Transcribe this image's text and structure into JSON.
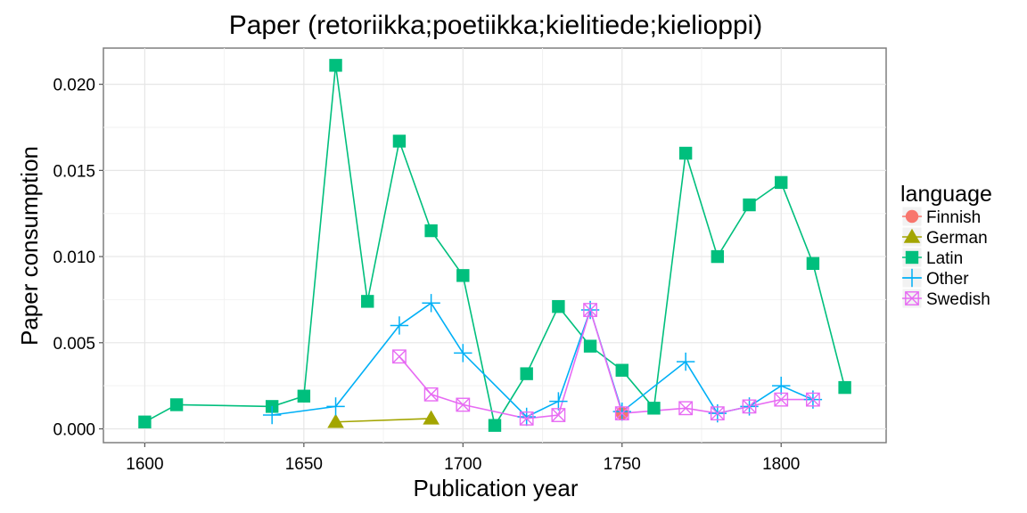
{
  "chart_data": {
    "type": "line",
    "title": "Paper (retoriikka;poetiikka;kielitiede;kielioppi)",
    "xlabel": "Publication year",
    "ylabel": "Paper consumption",
    "xlim": [
      1587,
      1833
    ],
    "ylim": [
      -0.0008,
      0.0221
    ],
    "xticks": [
      1600,
      1650,
      1700,
      1750,
      1800
    ],
    "yticks": [
      0.0,
      0.005,
      0.01,
      0.015,
      0.02
    ],
    "ytick_labels": [
      "0.000",
      "0.005",
      "0.010",
      "0.015",
      "0.020"
    ],
    "grid": true,
    "legend": {
      "title": "language",
      "position": "right"
    },
    "series": [
      {
        "name": "Finnish",
        "color": "#F8766D",
        "marker": "circle",
        "points": [
          [
            1750,
            0.0009
          ]
        ]
      },
      {
        "name": "German",
        "color": "#A3A500",
        "marker": "triangle",
        "points": [
          [
            1660,
            0.0004
          ],
          [
            1690,
            0.0006
          ]
        ]
      },
      {
        "name": "Latin",
        "color": "#00BF7D",
        "marker": "square",
        "points": [
          [
            1600,
            0.0004
          ],
          [
            1610,
            0.0014
          ],
          [
            1640,
            0.0013
          ],
          [
            1650,
            0.0019
          ],
          [
            1660,
            0.0211
          ],
          [
            1670,
            0.0074
          ],
          [
            1680,
            0.0167
          ],
          [
            1690,
            0.0115
          ],
          [
            1700,
            0.0089
          ],
          [
            1710,
            0.0002
          ],
          [
            1720,
            0.0032
          ],
          [
            1730,
            0.0071
          ],
          [
            1740,
            0.0048
          ],
          [
            1750,
            0.0034
          ],
          [
            1760,
            0.0012
          ],
          [
            1770,
            0.016
          ],
          [
            1780,
            0.01
          ],
          [
            1790,
            0.013
          ],
          [
            1800,
            0.0143
          ],
          [
            1810,
            0.0096
          ],
          [
            1820,
            0.0024
          ]
        ]
      },
      {
        "name": "Other",
        "color": "#00B0F6",
        "marker": "plus",
        "points": [
          [
            1640,
            0.0008
          ],
          [
            1660,
            0.0013
          ],
          [
            1680,
            0.006
          ],
          [
            1690,
            0.0073
          ],
          [
            1700,
            0.0044
          ],
          [
            1720,
            0.0007
          ],
          [
            1730,
            0.0016
          ],
          [
            1740,
            0.0069
          ],
          [
            1750,
            0.001
          ],
          [
            1770,
            0.0039
          ],
          [
            1780,
            0.0009
          ],
          [
            1790,
            0.0013
          ],
          [
            1800,
            0.0025
          ],
          [
            1810,
            0.0017
          ]
        ]
      },
      {
        "name": "Swedish",
        "color": "#E76BF3",
        "marker": "boxcross",
        "points": [
          [
            1680,
            0.0042
          ],
          [
            1690,
            0.002
          ],
          [
            1700,
            0.0014
          ],
          [
            1720,
            0.0006
          ],
          [
            1730,
            0.0008
          ],
          [
            1740,
            0.0069
          ],
          [
            1750,
            0.0009
          ],
          [
            1770,
            0.0012
          ],
          [
            1780,
            0.0009
          ],
          [
            1790,
            0.0013
          ],
          [
            1800,
            0.0017
          ],
          [
            1810,
            0.0017
          ]
        ]
      }
    ]
  }
}
